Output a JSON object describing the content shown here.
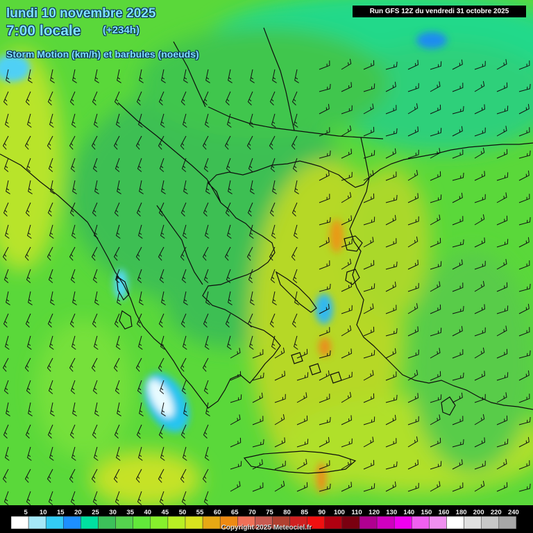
{
  "header": {
    "date_line": "lundi 10 novembre 2025",
    "time_line": "7:00 locale",
    "offset": "(+234h)",
    "product": "Storm Motion (km/h) et barbules (noeuds)"
  },
  "run_info": "Run GFS 12Z du vendredi 31 octobre 2025",
  "legend": {
    "labels": [
      "5",
      "10",
      "15",
      "20",
      "25",
      "30",
      "35",
      "40",
      "45",
      "50",
      "55",
      "60",
      "65",
      "70",
      "75",
      "80",
      "85",
      "90",
      "100",
      "110",
      "120",
      "130",
      "140",
      "150",
      "160",
      "180",
      "200",
      "220",
      "240"
    ],
    "colors": [
      "#ffffff",
      "#a4e8f8",
      "#33ccf5",
      "#1d8fff",
      "#00e0a0",
      "#3cc15a",
      "#55d34e",
      "#62e83a",
      "#86f02c",
      "#b8f024",
      "#d8e41e",
      "#e6a814",
      "#ee8a12",
      "#f07058",
      "#c85a50",
      "#b04030",
      "#d02020",
      "#f01010",
      "#b00010",
      "#7a0010",
      "#b00090",
      "#d000c0",
      "#f000f0",
      "#f060f0",
      "#f090f0",
      "#ffffff",
      "#e0e0e0",
      "#c8c8c8",
      "#a8a8a8"
    ]
  },
  "map": {
    "background_color": "#5ad83a",
    "wind_barb_color": "#111111"
  },
  "copyright": "Copyright 2025 Meteociel.fr"
}
